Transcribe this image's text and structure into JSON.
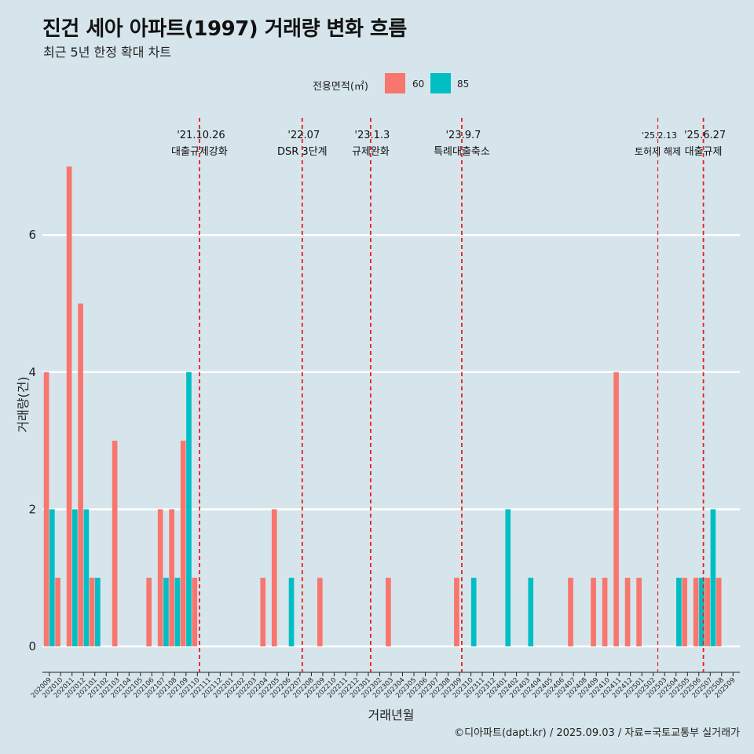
{
  "chart_data": {
    "type": "bar",
    "title": "진건 세아 아파트(1997) 거래량 변화 흐름",
    "subtitle": "최근 5년 한정 확대 차트",
    "xlabel": "거래년월",
    "ylabel": "거래량(건)",
    "ylim": [
      -0.3,
      7.5
    ],
    "yticks": [
      0,
      2,
      4,
      6
    ],
    "legend": {
      "title": "전용면적(㎡)",
      "position": "top"
    },
    "categories": [
      "202009",
      "202010",
      "202011",
      "202012",
      "202101",
      "202102",
      "202103",
      "202104",
      "202105",
      "202106",
      "202107",
      "202108",
      "202109",
      "202110",
      "202111",
      "202112",
      "202201",
      "202202",
      "202203",
      "202204",
      "202205",
      "202206",
      "202207",
      "202208",
      "202209",
      "202210",
      "202211",
      "202212",
      "202301",
      "202302",
      "202303",
      "202304",
      "202305",
      "202306",
      "202307",
      "202308",
      "202309",
      "202310",
      "202311",
      "202312",
      "202401",
      "202402",
      "202403",
      "202404",
      "202405",
      "202406",
      "202407",
      "202408",
      "202409",
      "202410",
      "202411",
      "202412",
      "202501",
      "202502",
      "202503",
      "202504",
      "202505",
      "202506",
      "202507",
      "202508",
      "202509"
    ],
    "series": [
      {
        "name": "60",
        "color": "#f8766d",
        "values": [
          4,
          1,
          7,
          5,
          1,
          0,
          3,
          0,
          0,
          1,
          2,
          2,
          3,
          1,
          0,
          0,
          0,
          0,
          0,
          1,
          2,
          0,
          0,
          0,
          1,
          0,
          0,
          0,
          0,
          0,
          1,
          0,
          0,
          0,
          0,
          0,
          1,
          0,
          0,
          0,
          0,
          0,
          0,
          0,
          0,
          0,
          1,
          0,
          1,
          1,
          4,
          1,
          1,
          0,
          0,
          0,
          1,
          1,
          1,
          1,
          0
        ]
      },
      {
        "name": "85",
        "color": "#00bfc4",
        "values": [
          2,
          0,
          2,
          2,
          1,
          0,
          0,
          0,
          0,
          0,
          1,
          1,
          4,
          0,
          0,
          0,
          0,
          0,
          0,
          0,
          0,
          1,
          0,
          0,
          0,
          0,
          0,
          0,
          0,
          0,
          0,
          0,
          0,
          0,
          0,
          0,
          0,
          1,
          0,
          0,
          2,
          0,
          1,
          0,
          0,
          0,
          0,
          0,
          0,
          0,
          0,
          0,
          0,
          0,
          0,
          1,
          0,
          1,
          2,
          0,
          0
        ]
      }
    ],
    "events": [
      {
        "date": "'21.10.26",
        "label": "대출규제강화",
        "position": 13.18
      },
      {
        "date": "'22.07",
        "label": "DSR 3단계",
        "position": 22.2
      },
      {
        "date": "'23.1.3",
        "label": "규제완화",
        "position": 28.2
      },
      {
        "date": "'23.9.7",
        "label": "특례대출축소",
        "position": 36.2
      },
      {
        "date": "'25.2.13",
        "label": "토허제 해제",
        "position": 53.4
      },
      {
        "date": "'25.6.27",
        "label": "대출규제",
        "position": 57.4
      }
    ],
    "caption": "©디아파트(dapt.kr) / 2025.09.03 / 자료=국토교통부 실거래가"
  }
}
